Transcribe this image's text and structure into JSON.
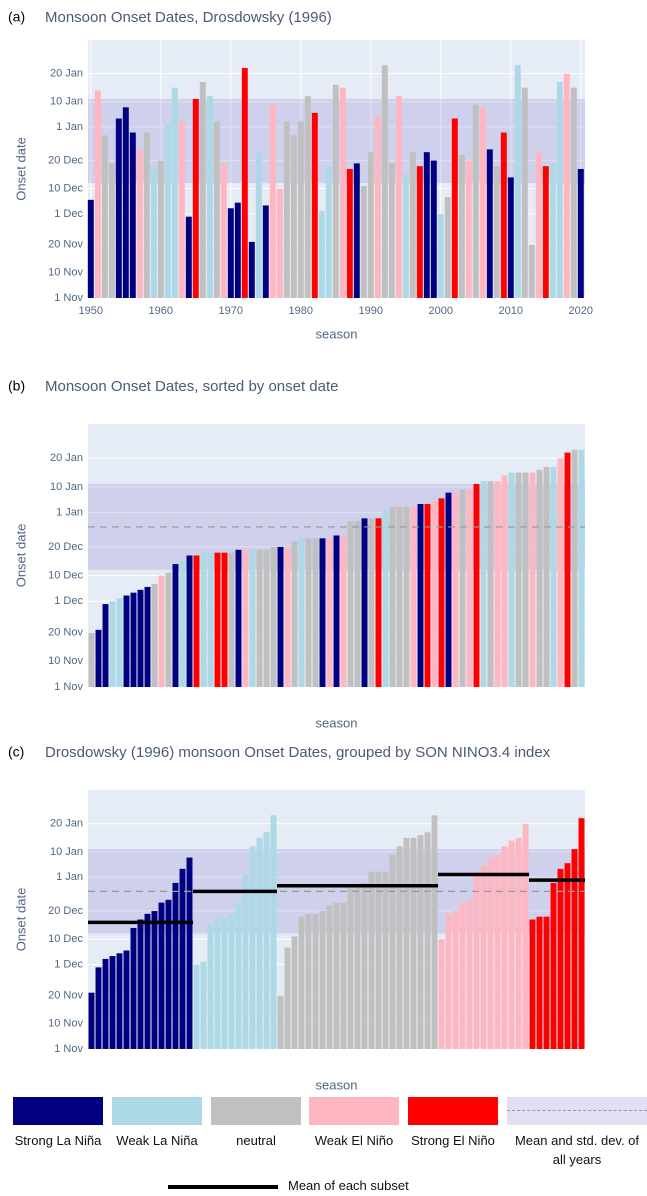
{
  "chart_data": [
    {
      "type": "bar",
      "panel_label": "(a)",
      "title": "Monsoon Onset Dates, Drosdowsky (1996)",
      "y_label": "Onset date",
      "x_label": "season",
      "xlim": [
        1949.6,
        2020.6
      ],
      "xticks": [
        1950,
        1960,
        1970,
        1980,
        1990,
        2000,
        2010,
        2020
      ],
      "ylim": [
        0,
        92
      ],
      "yticks": [
        {
          "value": 0,
          "label": "1 Nov"
        },
        {
          "value": 9,
          "label": "10 Nov"
        },
        {
          "value": 19,
          "label": "20 Nov"
        },
        {
          "value": 30,
          "label": "1 Dec"
        },
        {
          "value": 39,
          "label": "10 Dec"
        },
        {
          "value": 49,
          "label": "20 Dec"
        },
        {
          "value": 61,
          "label": "1 Jan"
        },
        {
          "value": 70,
          "label": "10 Jan"
        },
        {
          "value": 80,
          "label": "20 Jan"
        }
      ],
      "grid": true,
      "band": {
        "mean": 56,
        "std": 15,
        "color": "#8f7fd0"
      },
      "mean_line": false,
      "series": [
        {
          "name": "Strong La Niña",
          "color": "#000080",
          "x": [
            1950,
            1954,
            1955,
            1956,
            1964,
            1970,
            1971,
            1973,
            1975,
            1988,
            1998,
            1999,
            2007,
            2010,
            2020
          ],
          "values": [
            35,
            64,
            68,
            59,
            29,
            32,
            34,
            20,
            33,
            48,
            52,
            49,
            53,
            43,
            46
          ]
        },
        {
          "name": "Weak La Niña",
          "color": "#add8e6",
          "x": [
            1959,
            1961,
            1962,
            1967,
            1974,
            1983,
            1984,
            1995,
            2000,
            2011,
            2016,
            2017
          ],
          "values": [
            47,
            62,
            75,
            72,
            52,
            31,
            47,
            44,
            30,
            83,
            48,
            77
          ]
        },
        {
          "name": "neutral",
          "color": "#c0c0c0",
          "x": [
            1952,
            1953,
            1958,
            1960,
            1966,
            1968,
            1978,
            1979,
            1980,
            1981,
            1985,
            1989,
            1990,
            1992,
            1993,
            1996,
            2001,
            2003,
            2005,
            2008,
            2012,
            2013,
            2019
          ],
          "values": [
            58,
            48,
            59,
            49,
            77,
            63,
            63,
            58,
            63,
            72,
            76,
            40,
            52,
            83,
            48,
            52,
            36,
            51,
            69,
            47,
            75,
            19,
            75
          ]
        },
        {
          "name": "Weak El Niño",
          "color": "#ffb6c1",
          "x": [
            1951,
            1957,
            1963,
            1969,
            1976,
            1977,
            1986,
            1991,
            1994,
            2004,
            2006,
            2014,
            2018
          ],
          "values": [
            74,
            53,
            63,
            48,
            69,
            39,
            75,
            65,
            72,
            49,
            68,
            52,
            80
          ]
        },
        {
          "name": "Strong El Niño",
          "color": "#ff0000",
          "x": [
            1965,
            1972,
            1982,
            1987,
            1997,
            2002,
            2009,
            2015
          ],
          "values": [
            71,
            82,
            66,
            46,
            47,
            64,
            59,
            47
          ]
        }
      ]
    },
    {
      "type": "bar",
      "panel_label": "(b)",
      "title": "Monsoon Onset Dates, sorted by onset date",
      "y_label": "Onset date",
      "x_label": "season",
      "ylim": [
        0,
        92
      ],
      "yticks": [
        {
          "value": 0,
          "label": "1 Nov"
        },
        {
          "value": 9,
          "label": "10 Nov"
        },
        {
          "value": 19,
          "label": "20 Nov"
        },
        {
          "value": 30,
          "label": "1 Dec"
        },
        {
          "value": 39,
          "label": "10 Dec"
        },
        {
          "value": 49,
          "label": "20 Dec"
        },
        {
          "value": 61,
          "label": "1 Jan"
        },
        {
          "value": 70,
          "label": "10 Jan"
        },
        {
          "value": 80,
          "label": "20 Jan"
        }
      ],
      "grid": true,
      "band": {
        "mean": 56,
        "std": 15,
        "color": "#8f7fd0"
      },
      "mean_line": true,
      "values": [
        19,
        20,
        29,
        30,
        31,
        32,
        33,
        34,
        35,
        36,
        39,
        40,
        43,
        44,
        46,
        46,
        47,
        47,
        47,
        47,
        47,
        48,
        48,
        48,
        48,
        48,
        49,
        49,
        49,
        51,
        52,
        52,
        52,
        52,
        52,
        53,
        53,
        58,
        58,
        59,
        59,
        59,
        62,
        63,
        63,
        63,
        63,
        64,
        64,
        65,
        66,
        68,
        68,
        69,
        69,
        71,
        72,
        72,
        72,
        74,
        75,
        75,
        75,
        75,
        76,
        77,
        77,
        80,
        82,
        83,
        83
      ],
      "colors": [
        "#c0c0c0",
        "#000080",
        "#000080",
        "#add8e6",
        "#add8e6",
        "#000080",
        "#000080",
        "#000080",
        "#000080",
        "#c0c0c0",
        "#ffb6c1",
        "#c0c0c0",
        "#000080",
        "#add8e6",
        "#000080",
        "#ff0000",
        "#add8e6",
        "#add8e6",
        "#ff0000",
        "#ff0000",
        "#c0c0c0",
        "#000080",
        "#ffb6c1",
        "#add8e6",
        "#c0c0c0",
        "#c0c0c0",
        "#c0c0c0",
        "#000080",
        "#ffb6c1",
        "#c0c0c0",
        "#add8e6",
        "#c0c0c0",
        "#c0c0c0",
        "#000080",
        "#ffb6c1",
        "#000080",
        "#ffb6c1",
        "#c0c0c0",
        "#c0c0c0",
        "#000080",
        "#c0c0c0",
        "#ff0000",
        "#add8e6",
        "#c0c0c0",
        "#c0c0c0",
        "#c0c0c0",
        "#ffb6c1",
        "#000080",
        "#ff0000",
        "#ffb6c1",
        "#ff0000",
        "#000080",
        "#ffb6c1",
        "#c0c0c0",
        "#ffb6c1",
        "#ff0000",
        "#add8e6",
        "#c0c0c0",
        "#ffb6c1",
        "#ffb6c1",
        "#add8e6",
        "#c0c0c0",
        "#c0c0c0",
        "#ffb6c1",
        "#c0c0c0",
        "#c0c0c0",
        "#add8e6",
        "#ffb6c1",
        "#ff0000",
        "#c0c0c0",
        "#add8e6"
      ]
    },
    {
      "type": "bar",
      "panel_label": "(c)",
      "title": "Drosdowsky (1996) monsoon Onset Dates, grouped by SON NINO3.4 index",
      "y_label": "Onset date",
      "x_label": "season",
      "ylim": [
        0,
        92
      ],
      "yticks": [
        {
          "value": 0,
          "label": "1 Nov"
        },
        {
          "value": 9,
          "label": "10 Nov"
        },
        {
          "value": 19,
          "label": "20 Nov"
        },
        {
          "value": 30,
          "label": "1 Dec"
        },
        {
          "value": 39,
          "label": "10 Dec"
        },
        {
          "value": 49,
          "label": "20 Dec"
        },
        {
          "value": 61,
          "label": "1 Jan"
        },
        {
          "value": 70,
          "label": "10 Jan"
        },
        {
          "value": 80,
          "label": "20 Jan"
        }
      ],
      "grid": true,
      "band": {
        "mean": 56,
        "std": 15,
        "color": "#8f7fd0"
      },
      "mean_line": true,
      "series": [
        {
          "color": "#000080",
          "mean": 45,
          "values": [
            20,
            29,
            32,
            33,
            34,
            35,
            43,
            46,
            48,
            49,
            52,
            53,
            59,
            64,
            68
          ]
        },
        {
          "color": "#add8e6",
          "mean": 56,
          "values": [
            30,
            31,
            44,
            47,
            47,
            48,
            52,
            62,
            72,
            75,
            77,
            83
          ]
        },
        {
          "color": "#c0c0c0",
          "mean": 58,
          "values": [
            19,
            36,
            40,
            47,
            48,
            48,
            49,
            51,
            52,
            52,
            58,
            58,
            59,
            63,
            63,
            63,
            69,
            72,
            75,
            75,
            76,
            77,
            83
          ]
        },
        {
          "color": "#ffb6c1",
          "mean": 62,
          "values": [
            39,
            48,
            49,
            52,
            53,
            63,
            65,
            68,
            69,
            72,
            74,
            75,
            80
          ]
        },
        {
          "color": "#ff0000",
          "mean": 60,
          "values": [
            46,
            47,
            47,
            59,
            64,
            66,
            71,
            82
          ]
        }
      ]
    }
  ],
  "legend": {
    "band_label": "Mean and std. dev. of all years",
    "subset_mean_label": "Mean of each subset"
  }
}
